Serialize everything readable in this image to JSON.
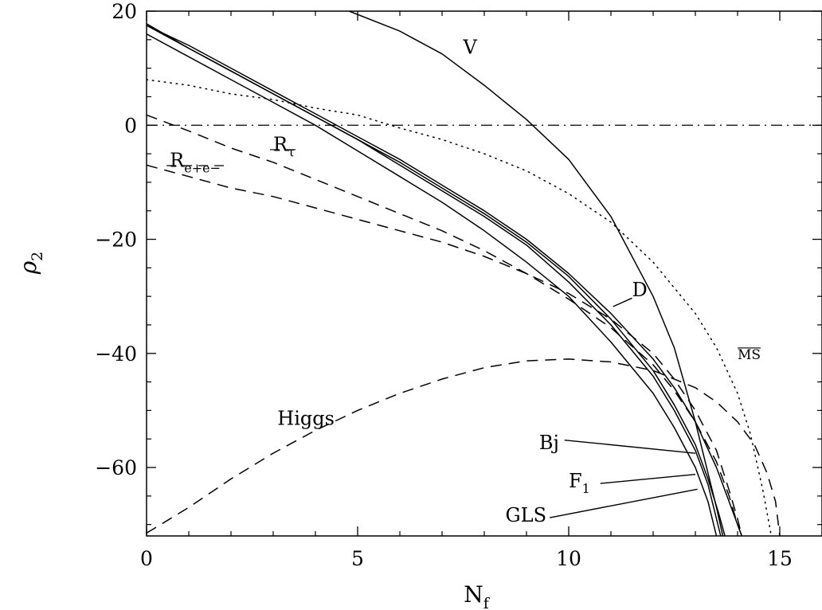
{
  "chart_data": {
    "type": "line",
    "title": "",
    "xlabel": "N",
    "xlabel_sub": "f",
    "ylabel": "ρ",
    "ylabel_sub": "2",
    "xlim": [
      0,
      16
    ],
    "ylim": [
      -72,
      20
    ],
    "x_ticks": [
      0,
      5,
      10,
      15
    ],
    "x_tick_labels": [
      "0",
      "5",
      "10",
      "15"
    ],
    "y_ticks": [
      20,
      0,
      -20,
      -40,
      -60
    ],
    "y_tick_labels": [
      "20",
      "0",
      "−20",
      "−40",
      "−60"
    ],
    "grid": false,
    "legend": "none",
    "series": [
      {
        "name": "V",
        "style": "solid",
        "x": [
          4.8,
          6,
          7,
          8,
          9,
          10,
          11,
          12,
          12.5,
          13,
          13.3,
          13.5,
          13.65
        ],
        "y": [
          20,
          16.5,
          12.5,
          7,
          1,
          -6,
          -16,
          -30,
          -39,
          -52,
          -61,
          -67,
          -72
        ]
      },
      {
        "name": "D",
        "style": "solid",
        "x": [
          0,
          1,
          2,
          3,
          4,
          5,
          6,
          7,
          8,
          9,
          10,
          11,
          12,
          12.5,
          13,
          13.5,
          13.8,
          14.0,
          14.1
        ],
        "y": [
          17.5,
          14,
          10,
          6,
          2,
          -2,
          -6,
          -10.5,
          -15,
          -20,
          -26,
          -33,
          -41,
          -46,
          -52,
          -60,
          -66,
          -70,
          -72
        ]
      },
      {
        "name": "Bj",
        "style": "solid",
        "x": [
          0,
          1,
          2,
          3,
          4,
          5,
          6,
          7,
          8,
          9,
          10,
          11,
          12,
          12.5,
          13,
          13.3,
          13.55,
          13.7
        ],
        "y": [
          17.5,
          13.5,
          9.5,
          5.5,
          1.5,
          -2.5,
          -6.5,
          -11,
          -15.5,
          -20.5,
          -26.5,
          -34,
          -43,
          -49,
          -56,
          -62,
          -68,
          -72
        ]
      },
      {
        "name": "F1",
        "style": "solid",
        "x": [
          0,
          1,
          2,
          3,
          4,
          5,
          6,
          7,
          8,
          9,
          10,
          11,
          12,
          12.5,
          13,
          13.3,
          13.5,
          13.6
        ],
        "y": [
          17.8,
          13.5,
          9.5,
          5.5,
          1.5,
          -2.5,
          -7,
          -11.5,
          -16,
          -21,
          -27.5,
          -35,
          -44,
          -50,
          -57,
          -63,
          -69,
          -72
        ]
      },
      {
        "name": "GLS",
        "style": "solid",
        "x": [
          0,
          1,
          2,
          3,
          4,
          5,
          6,
          7,
          8,
          9,
          10,
          11,
          12,
          12.5,
          13,
          13.3,
          13.5
        ],
        "y": [
          16,
          12,
          8,
          4,
          0,
          -4.5,
          -9,
          -13.5,
          -18.5,
          -24,
          -30,
          -38,
          -47,
          -53,
          -60,
          -66,
          -72
        ]
      },
      {
        "name": "MS",
        "style": "dotted",
        "x": [
          0,
          1,
          2,
          3,
          4,
          5,
          6,
          7,
          8,
          9,
          10,
          11,
          12,
          13,
          13.5,
          14,
          14.3,
          14.6,
          14.8
        ],
        "y": [
          8,
          7,
          5.5,
          4.5,
          3,
          1.8,
          -0.5,
          -2.5,
          -5,
          -8,
          -12,
          -17,
          -24,
          -33,
          -39,
          -47,
          -54,
          -64,
          -72
        ]
      },
      {
        "name": "Rτ",
        "style": "dashed",
        "x": [
          0,
          1,
          2,
          3,
          4,
          5,
          6,
          7,
          8,
          9,
          10,
          11,
          12,
          12.5,
          13,
          13.5,
          13.8,
          14.0,
          14.1
        ],
        "y": [
          1.8,
          -1,
          -4,
          -6.5,
          -9.5,
          -12.5,
          -15.5,
          -18.5,
          -22,
          -26,
          -30.5,
          -35.5,
          -42,
          -46.5,
          -52,
          -59,
          -65,
          -70,
          -72
        ]
      },
      {
        "name": "Re+e−",
        "style": "dashed",
        "x": [
          0,
          1,
          2,
          3,
          4,
          5,
          6,
          7,
          8,
          9,
          10,
          11,
          12,
          12.5,
          13,
          13.5,
          13.8,
          14.0,
          14.1
        ],
        "y": [
          -7,
          -9,
          -11,
          -12.5,
          -14.5,
          -16.5,
          -18.5,
          -20.5,
          -23,
          -26,
          -29.5,
          -34,
          -40,
          -44.5,
          -50,
          -57,
          -64,
          -69,
          -72
        ]
      },
      {
        "name": "Higgs",
        "style": "dashed",
        "x": [
          0,
          1,
          2,
          3,
          4,
          5,
          6,
          7,
          8,
          9,
          10,
          11,
          12,
          13,
          13.5,
          14,
          14.4,
          14.7,
          14.9,
          15.0
        ],
        "y": [
          -71.5,
          -67,
          -62,
          -57.5,
          -53.5,
          -50,
          -47,
          -44.5,
          -42.5,
          -41.3,
          -41,
          -41.5,
          -43,
          -46,
          -48.5,
          -52,
          -56,
          -61,
          -66,
          -72
        ]
      }
    ],
    "reference_lines": [
      {
        "y": 0,
        "style": "dash-dot"
      }
    ],
    "annotations": [
      {
        "id": "V",
        "text": "V",
        "x": 7.5,
        "y": 12.5
      },
      {
        "id": "D",
        "text": "D",
        "x": 11.5,
        "y": -30
      },
      {
        "id": "MS",
        "text": "MS",
        "x": 14.0,
        "y": -41
      },
      {
        "id": "Rtau",
        "text": "R",
        "sub": "τ",
        "x": 3.0,
        "y": -4.5
      },
      {
        "id": "Ree",
        "text": "R",
        "sub": "e+e−",
        "x": 0.55,
        "y": -7.3
      },
      {
        "id": "Higgs",
        "text": "Higgs",
        "x": 3.1,
        "y": -52.5
      },
      {
        "id": "Bj",
        "text": "Bj",
        "x": 9.3,
        "y": -56.8
      },
      {
        "id": "F1",
        "text": "F",
        "sub": "1",
        "x": 10.0,
        "y": -63.5
      },
      {
        "id": "GLS",
        "text": "GLS",
        "x": 8.5,
        "y": -69.5
      }
    ],
    "leader_lines": [
      {
        "id": "D",
        "from": [
          11.05,
          -31.8
        ],
        "to": [
          11.5,
          -30.3
        ]
      },
      {
        "id": "Bj",
        "from": [
          9.9,
          -55.2
        ],
        "to": [
          13.0,
          -57.5
        ]
      },
      {
        "id": "F1",
        "from": [
          10.75,
          -62.8
        ],
        "to": [
          13.0,
          -61.2
        ]
      },
      {
        "id": "GLS",
        "from": [
          9.55,
          -68.8
        ],
        "to": [
          13.05,
          -63.8
        ]
      }
    ]
  }
}
